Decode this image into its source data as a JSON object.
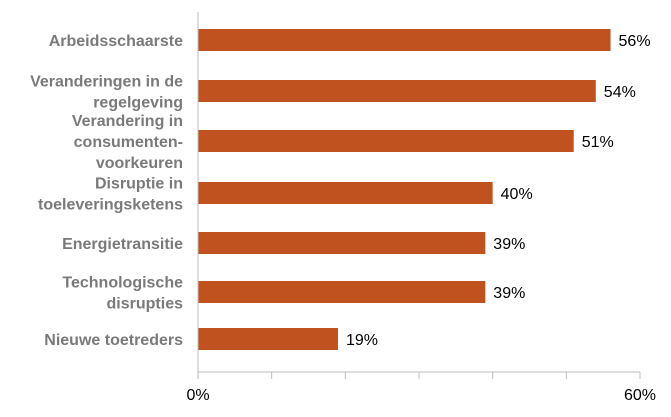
{
  "chart_data": {
    "type": "bar",
    "orientation": "horizontal",
    "categories": [
      [
        "Arbeidsschaarste"
      ],
      [
        "Veranderingen in de",
        "regelgeving"
      ],
      [
        "Verandering in",
        "consumenten-",
        "voorkeuren"
      ],
      [
        "Disruptie in",
        "toeleveringsketens"
      ],
      [
        "Energietransitie"
      ],
      [
        "Technologische",
        "disrupties"
      ],
      [
        "Nieuwe toetreders"
      ]
    ],
    "values": [
      56,
      54,
      51,
      40,
      39,
      39,
      19
    ],
    "value_labels": [
      "56%",
      "54%",
      "51%",
      "40%",
      "39%",
      "39%",
      "19%"
    ],
    "xlim": [
      0,
      60
    ],
    "x_tick_labels": [
      "0%",
      "60%"
    ],
    "bar_color": "#c0521f",
    "label_color": "#7a7a7a",
    "grid": false,
    "legend": "none"
  }
}
